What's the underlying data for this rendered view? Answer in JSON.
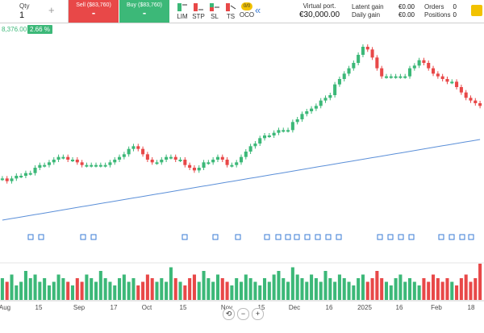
{
  "toolbar": {
    "qty_label": "Qty",
    "qty_value": "1",
    "plus": "+",
    "sell_label": "Sell ($83,760)",
    "sell_price": "-",
    "buy_label": "Buy ($83,760)",
    "buy_price": "-",
    "order_types": [
      "LIM",
      "STP",
      "SL",
      "TS",
      "OCO"
    ],
    "oco_badge": "0/0",
    "collapse": "«",
    "virtual_port_label": "Virtual port.",
    "virtual_port_value": "€30,000.00",
    "latent_gain_label": "Latent gain",
    "latent_gain_value": "€0.00",
    "daily_gain_label": "Daily gain",
    "daily_gain_value": "€0.00",
    "orders_label": "Orders",
    "orders_value": "0",
    "positions_label": "Positions",
    "positions_value": "0"
  },
  "info": {
    "price": "8,376.00",
    "change": "2.66 %"
  },
  "colors": {
    "up": "#3cb878",
    "down": "#e84848",
    "ma": "#5b8fd8",
    "accent": "#3a7bd5"
  },
  "x_axis_labels": [
    "Aug",
    "15",
    "Sep",
    "17",
    "Oct",
    "15",
    "Nov",
    "15",
    "Dec",
    "16",
    "2025",
    "16",
    "Feb",
    "18"
  ],
  "zoom_controls": [
    "reset-icon",
    "zoom-out-icon",
    "zoom-in-icon"
  ],
  "chart_data": {
    "type": "candlestick",
    "closes": [
      1.0,
      0.99,
      1.0,
      1.01,
      1.01,
      1.02,
      1.02,
      1.04,
      1.05,
      1.05,
      1.06,
      1.07,
      1.08,
      1.08,
      1.07,
      1.07,
      1.06,
      1.05,
      1.05,
      1.05,
      1.05,
      1.05,
      1.05,
      1.06,
      1.07,
      1.08,
      1.09,
      1.11,
      1.12,
      1.11,
      1.09,
      1.07,
      1.06,
      1.06,
      1.07,
      1.08,
      1.08,
      1.07,
      1.07,
      1.05,
      1.04,
      1.03,
      1.04,
      1.06,
      1.06,
      1.07,
      1.08,
      1.07,
      1.05,
      1.05,
      1.06,
      1.08,
      1.1,
      1.12,
      1.13,
      1.15,
      1.16,
      1.16,
      1.17,
      1.18,
      1.18,
      1.18,
      1.21,
      1.22,
      1.24,
      1.25,
      1.26,
      1.27,
      1.29,
      1.3,
      1.31,
      1.35,
      1.37,
      1.39,
      1.41,
      1.43,
      1.46,
      1.49,
      1.48,
      1.45,
      1.41,
      1.38,
      1.38,
      1.38,
      1.38,
      1.38,
      1.38,
      1.41,
      1.42,
      1.44,
      1.43,
      1.41,
      1.39,
      1.38,
      1.37,
      1.36,
      1.36,
      1.34,
      1.32,
      1.3,
      1.29,
      1.28,
      1.27
    ],
    "volumes": [
      0.6,
      0.5,
      0.7,
      0.4,
      0.5,
      0.8,
      0.6,
      0.7,
      0.5,
      0.6,
      0.4,
      0.5,
      0.7,
      0.6,
      0.5,
      0.4,
      0.6,
      0.5,
      0.7,
      0.6,
      0.5,
      0.8,
      0.6,
      0.5,
      0.4,
      0.6,
      0.7,
      0.5,
      0.6,
      0.4,
      0.5,
      0.7,
      0.6,
      0.5,
      0.6,
      0.5,
      0.9,
      0.6,
      0.5,
      0.4,
      0.6,
      0.7,
      0.5,
      0.8,
      0.6,
      0.5,
      0.7,
      0.6,
      0.5,
      0.4,
      0.6,
      0.5,
      0.7,
      0.6,
      0.5,
      0.4,
      0.6,
      0.5,
      0.7,
      0.8,
      0.6,
      0.5,
      0.9,
      0.7,
      0.6,
      0.5,
      0.7,
      0.6,
      0.5,
      0.8,
      0.6,
      0.5,
      0.7,
      0.6,
      0.5,
      0.4,
      0.6,
      0.7,
      0.5,
      0.6,
      0.8,
      0.6,
      0.5,
      0.4,
      0.6,
      0.7,
      0.5,
      0.6,
      0.5,
      0.4,
      0.6,
      0.5,
      0.7,
      0.6,
      0.5,
      0.6,
      0.5,
      0.4,
      0.6,
      0.7,
      0.5,
      0.6,
      1.0
    ]
  }
}
